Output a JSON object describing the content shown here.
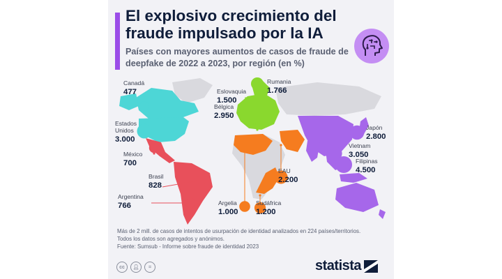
{
  "header": {
    "title": "El explosivo crecimiento del fraude impulsado por la IA",
    "subtitle": "Países con mayores aumentos de casos de fraude de deepfake de 2022 a 2023, por región (en %)"
  },
  "colors": {
    "north_america": "#4dd6d6",
    "latin_america": "#e8505b",
    "europe": "#8ad82e",
    "africa_middle_east": "#f57c1f",
    "asia_pacific": "#a667ea",
    "no_data": "#d9d9de",
    "title": "#0f1d3a",
    "accent": "#9b4de8"
  },
  "chart_data": {
    "type": "bubble-map",
    "title": "El explosivo crecimiento del fraude impulsado por la IA",
    "subtitle": "Países con mayores aumentos de casos de fraude de deepfake de 2022 a 2023, por región (en %)",
    "points": [
      {
        "country": "Canadá",
        "value": 477,
        "value_label": "477",
        "region": "north_america"
      },
      {
        "country": "Estados Unidos",
        "value": 3000,
        "value_label": "3.000",
        "region": "north_america"
      },
      {
        "country": "México",
        "value": 700,
        "value_label": "700",
        "region": "latin_america"
      },
      {
        "country": "Brasil",
        "value": 828,
        "value_label": "828",
        "region": "latin_america"
      },
      {
        "country": "Argentina",
        "value": 766,
        "value_label": "766",
        "region": "latin_america"
      },
      {
        "country": "Eslovaquia",
        "value": 1500,
        "value_label": "1.500",
        "region": "europe"
      },
      {
        "country": "Rumania",
        "value": 1766,
        "value_label": "1.766",
        "region": "europe"
      },
      {
        "country": "Bélgica",
        "value": 2950,
        "value_label": "2.950",
        "region": "europe"
      },
      {
        "country": "Argelia",
        "value": 1000,
        "value_label": "1.000",
        "region": "africa_middle_east"
      },
      {
        "country": "EAU",
        "value": 2200,
        "value_label": "2.200",
        "region": "africa_middle_east"
      },
      {
        "country": "Sudáfrica",
        "value": 1200,
        "value_label": "1.200",
        "region": "africa_middle_east"
      },
      {
        "country": "Japón",
        "value": 2800,
        "value_label": "2.800",
        "region": "asia_pacific"
      },
      {
        "country": "Vietnam",
        "value": 3050,
        "value_label": "3.050",
        "region": "asia_pacific"
      },
      {
        "country": "Filipinas",
        "value": 4500,
        "value_label": "4.500",
        "region": "asia_pacific"
      }
    ]
  },
  "footer": {
    "note": "Más de 2 mill. de casos de intentos de usurpación de identidad analizados en 224 países/territorios.",
    "note2": "Todos los datos son agregados y anónimos.",
    "source": "Fuente: Sumsub - Informe sobre fraude de identidad 2023",
    "brand": "statista",
    "license_icons": [
      "creative-commons-icon",
      "attribution-icon",
      "no-derivatives-icon"
    ]
  }
}
